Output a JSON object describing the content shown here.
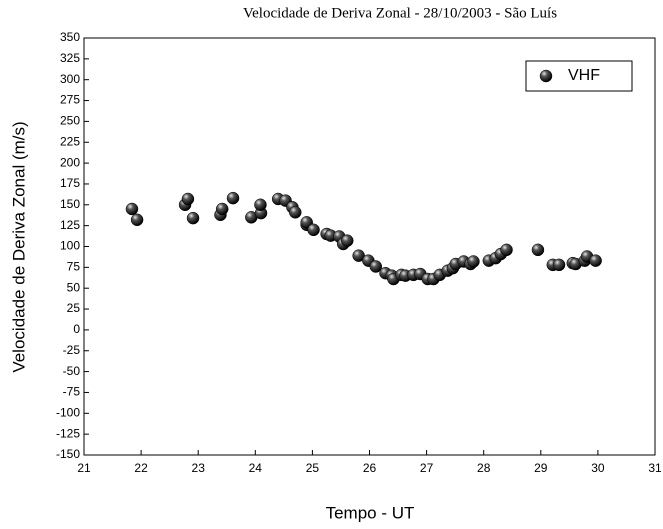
{
  "chart_data": {
    "type": "scatter",
    "title": "Velocidade de Deriva Zonal - 28/10/2003 - São Luís",
    "x_label": "Tempo - UT",
    "y_label": "Velocidade de Deriva Zonal (m/s)",
    "xlim": [
      21,
      31
    ],
    "xticks": [
      21,
      22,
      23,
      24,
      25,
      26,
      27,
      28,
      29,
      30,
      31
    ],
    "ylim": [
      -150,
      350
    ],
    "yticks": [
      -150,
      -125,
      -100,
      -75,
      -50,
      -25,
      0,
      25,
      50,
      75,
      100,
      125,
      150,
      175,
      200,
      225,
      250,
      275,
      300,
      325,
      350
    ],
    "legend": "upper right",
    "series": [
      {
        "name": "VHF",
        "color": "#000000",
        "x": [
          21.84,
          21.93,
          22.77,
          22.82,
          22.91,
          23.39,
          23.42,
          23.61,
          23.93,
          24.1,
          24.09,
          24.4,
          24.53,
          24.65,
          24.7,
          24.9,
          24.9,
          25.02,
          25.25,
          25.32,
          25.47,
          25.54,
          25.61,
          25.81,
          25.98,
          26.11,
          26.28,
          26.39,
          26.42,
          26.56,
          26.63,
          26.77,
          26.89,
          27.02,
          27.12,
          27.23,
          27.37,
          27.46,
          27.51,
          27.65,
          27.77,
          27.82,
          28.09,
          28.21,
          28.3,
          28.4,
          28.95,
          29.21,
          29.32,
          29.56,
          29.61,
          29.77,
          29.81,
          29.96
        ],
        "values": [
          145,
          132,
          150,
          157,
          134,
          138,
          145,
          158,
          135,
          140,
          150,
          157,
          155,
          147,
          141,
          126,
          129,
          120,
          115,
          113,
          112,
          103,
          107,
          89,
          83,
          76,
          68,
          65,
          61,
          66,
          65,
          66,
          67,
          61,
          61,
          66,
          71,
          74,
          79,
          82,
          79,
          82,
          83,
          86,
          91,
          96,
          96,
          78,
          78,
          80,
          79,
          83,
          88,
          83
        ]
      }
    ]
  }
}
